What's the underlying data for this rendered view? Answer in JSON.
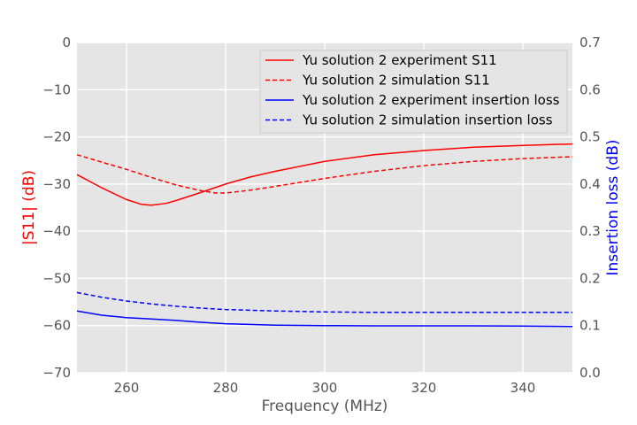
{
  "chart_data": {
    "type": "line",
    "xlabel": "Frequency (MHz)",
    "ylabel_left": "|S11| (dB)",
    "ylabel_right": "Insertion loss (dB)",
    "xlim": [
      250,
      350
    ],
    "ylim_left": [
      -70,
      0
    ],
    "ylim_right": [
      0.0,
      0.7
    ],
    "x_ticks": [
      "260",
      "280",
      "300",
      "320",
      "340"
    ],
    "x_tick_values": [
      260,
      280,
      300,
      320,
      340
    ],
    "y_left_ticks": [
      "0",
      "−10",
      "−20",
      "−30",
      "−40",
      "−50",
      "−60",
      "−70"
    ],
    "y_left_tick_values": [
      0,
      -10,
      -20,
      -30,
      -40,
      -50,
      -60,
      -70
    ],
    "y_right_ticks": [
      "0.0",
      "0.1",
      "0.2",
      "0.3",
      "0.4",
      "0.5",
      "0.6",
      "0.7"
    ],
    "y_right_tick_values": [
      0.0,
      0.1,
      0.2,
      0.3,
      0.4,
      0.5,
      0.6,
      0.7
    ],
    "grid": true,
    "legend_position": "top-right",
    "colors": {
      "left_axis": "#ff0000",
      "right_axis": "#0000ff",
      "plot_bg": "#e5e5e5",
      "grid": "#ffffff"
    },
    "series": [
      {
        "name": "Yu solution 2 experiment S11",
        "axis": "left",
        "color": "#ff0000",
        "dash": "solid",
        "x": [
          250,
          255,
          260,
          263,
          265,
          268,
          270,
          275,
          280,
          285,
          290,
          300,
          310,
          320,
          330,
          340,
          350
        ],
        "y": [
          -28,
          -30.8,
          -33.3,
          -34.3,
          -34.5,
          -34.1,
          -33.5,
          -31.8,
          -30,
          -28.5,
          -27.3,
          -25.2,
          -23.8,
          -22.9,
          -22.2,
          -21.8,
          -21.5
        ]
      },
      {
        "name": "Yu solution 2 simulation S11",
        "axis": "left",
        "color": "#ff0000",
        "dash": "dashed",
        "x": [
          250,
          260,
          265,
          270,
          275,
          278,
          280,
          285,
          290,
          300,
          310,
          320,
          330,
          340,
          350
        ],
        "y": [
          -23.8,
          -26.9,
          -28.6,
          -30.2,
          -31.4,
          -31.9,
          -31.9,
          -31.3,
          -30.5,
          -28.8,
          -27.3,
          -26.1,
          -25.2,
          -24.6,
          -24.2
        ]
      },
      {
        "name": "Yu solution 2 experiment insertion loss",
        "axis": "right",
        "color": "#0000ff",
        "dash": "solid",
        "x": [
          250,
          255,
          260,
          265,
          270,
          275,
          280,
          290,
          300,
          310,
          320,
          330,
          340,
          350
        ],
        "y": [
          0.131,
          0.122,
          0.117,
          0.114,
          0.111,
          0.107,
          0.104,
          0.101,
          0.1,
          0.0995,
          0.0995,
          0.0995,
          0.099,
          0.098
        ]
      },
      {
        "name": "Yu solution 2 simulation insertion loss",
        "axis": "right",
        "color": "#0000ff",
        "dash": "dashed",
        "x": [
          250,
          255,
          260,
          265,
          270,
          275,
          280,
          290,
          300,
          310,
          320,
          330,
          340,
          350
        ],
        "y": [
          0.17,
          0.16,
          0.152,
          0.146,
          0.141,
          0.137,
          0.134,
          0.131,
          0.129,
          0.128,
          0.128,
          0.128,
          0.128,
          0.128
        ]
      }
    ]
  }
}
